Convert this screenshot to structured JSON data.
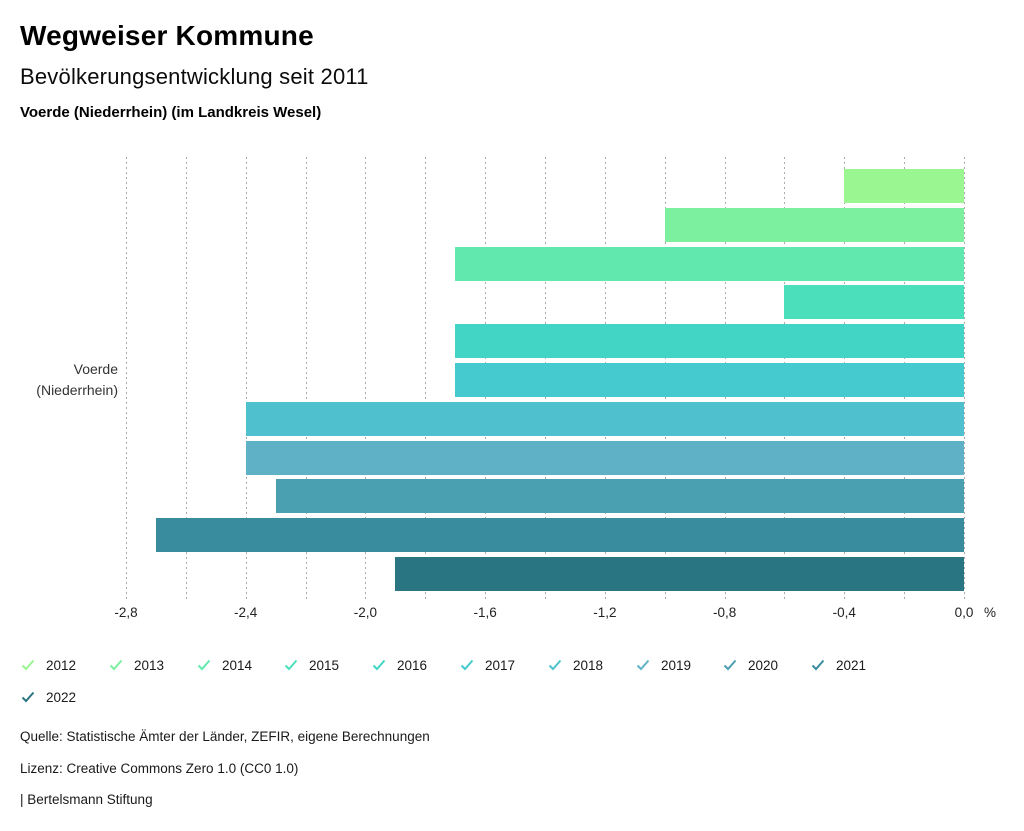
{
  "header": {
    "title": "Wegweiser Kommune",
    "subtitle": "Bevölkerungsentwicklung seit 2011",
    "location": "Voerde (Niederrhein) (im Landkreis Wesel)"
  },
  "chart_data": {
    "type": "bar",
    "orientation": "horizontal",
    "title": "Bevölkerungsentwicklung seit 2011",
    "category": "Voerde (Niederrhein)",
    "category_line1": "Voerde",
    "category_line2": "(Niederrhein)",
    "unit": "%",
    "xlim": [
      -2.8,
      0.0
    ],
    "gridline_step": 0.2,
    "labeled_tick_step": 0.4,
    "x_tick_labels": [
      "-2,8",
      "-2,4",
      "-2,0",
      "-1,6",
      "-1,2",
      "-0,8",
      "-0,4",
      "0,0"
    ],
    "x_tick_values": [
      -2.8,
      -2.4,
      -2.0,
      -1.6,
      -1.2,
      -0.8,
      -0.4,
      0.0
    ],
    "grid": "dotted-vertical",
    "legend_position": "bottom",
    "series": [
      {
        "name": "2012",
        "value": -0.4,
        "color": "#9AF691"
      },
      {
        "name": "2013",
        "value": -1.0,
        "color": "#7CF09E"
      },
      {
        "name": "2014",
        "value": -1.7,
        "color": "#61E8AE"
      },
      {
        "name": "2015",
        "value": -0.6,
        "color": "#4CDFBC"
      },
      {
        "name": "2016",
        "value": -1.7,
        "color": "#42D5C6"
      },
      {
        "name": "2017",
        "value": -1.7,
        "color": "#44CACF"
      },
      {
        "name": "2018",
        "value": -2.4,
        "color": "#4FC0CD"
      },
      {
        "name": "2019",
        "value": -2.4,
        "color": "#5FB2C5"
      },
      {
        "name": "2020",
        "value": -2.3,
        "color": "#4A9FB1"
      },
      {
        "name": "2021",
        "value": -2.7,
        "color": "#388C9E"
      },
      {
        "name": "2022",
        "value": -1.9,
        "color": "#2A7582"
      }
    ]
  },
  "legend": {
    "icon": "check-icon",
    "items_per_row": 10
  },
  "footer": {
    "source": "Quelle: Statistische Ämter der Länder, ZEFIR, eigene Berechnungen",
    "license": "Lizenz: Creative Commons Zero 1.0 (CC0 1.0)",
    "attribution": "| Bertelsmann Stiftung"
  }
}
